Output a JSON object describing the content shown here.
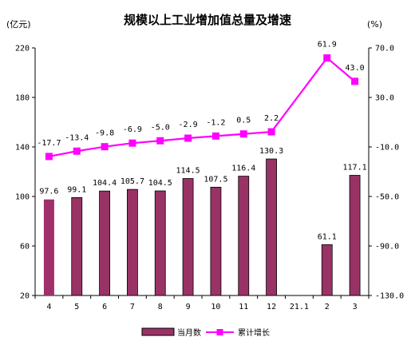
{
  "chart_data": {
    "type": "bar+line",
    "title": "规模以上工业增加值总量及增速",
    "left_unit": "(亿元)",
    "right_unit": "(%)",
    "categories": [
      "4",
      "5",
      "6",
      "7",
      "8",
      "9",
      "10",
      "11",
      "12",
      "21.1",
      "2",
      "3"
    ],
    "bar_series": {
      "name": "当月数",
      "values": [
        97.6,
        99.1,
        104.4,
        105.7,
        104.5,
        114.5,
        107.5,
        116.4,
        130.3,
        null,
        61.1,
        117.1
      ],
      "labels": [
        "97.6",
        "99.1",
        "104.4",
        "105.7",
        "104.5",
        "114.5",
        "107.5",
        "116.4",
        "130.3",
        "",
        "61.1",
        "117.1"
      ]
    },
    "line_series": {
      "name": "累计增长",
      "values": [
        -17.7,
        -13.4,
        -9.8,
        -6.9,
        -5.0,
        -2.9,
        -1.2,
        0.5,
        2.2,
        null,
        61.9,
        43.0
      ],
      "labels": [
        "-17.7",
        "-13.4",
        "-9.8",
        "-6.9",
        "-5.0",
        "-2.9",
        "-1.2",
        "0.5",
        "2.2",
        "",
        "61.9",
        "43.0"
      ]
    },
    "left_axis": {
      "ylim": [
        20,
        220
      ],
      "ticks": [
        20,
        60,
        100,
        140,
        180,
        220
      ]
    },
    "right_axis": {
      "ylim": [
        -130,
        70
      ],
      "ticks": [
        "-130.0",
        "-90.0",
        "-50.0",
        "-10.0",
        "30.0",
        "70.0"
      ]
    },
    "legend_position": "bottom",
    "grid": false,
    "colors": {
      "bar": "#993366",
      "bar_first": "#a0306a",
      "line": "#ff00ff",
      "axis": "#000000"
    }
  }
}
